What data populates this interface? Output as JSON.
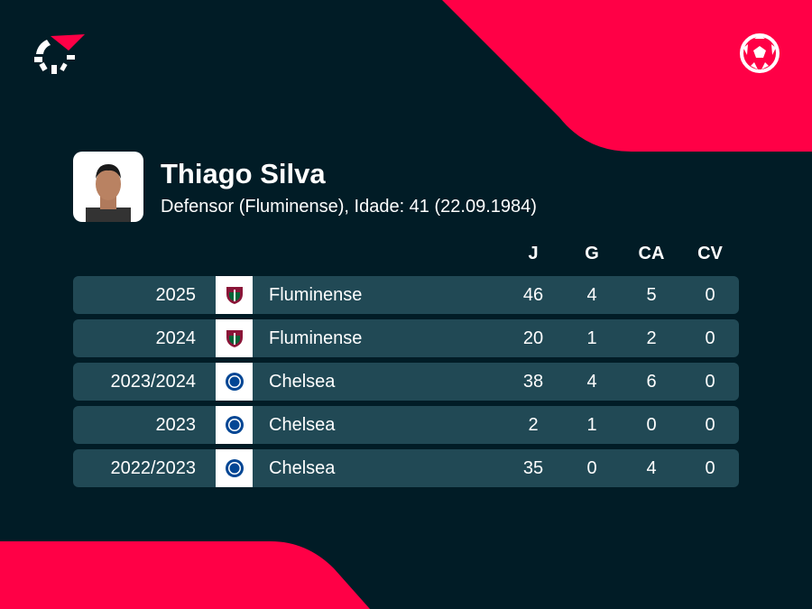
{
  "player": {
    "name": "Thiago Silva",
    "subtitle": "Defensor (Fluminense), Idade: 41 (22.09.1984)"
  },
  "columns": [
    "J",
    "G",
    "CA",
    "CV"
  ],
  "rows": [
    {
      "season": "2025",
      "team": "Fluminense",
      "crest": "fluminense-crest",
      "J": "46",
      "G": "4",
      "CA": "5",
      "CV": "0"
    },
    {
      "season": "2024",
      "team": "Fluminense",
      "crest": "fluminense-crest",
      "J": "20",
      "G": "1",
      "CA": "2",
      "CV": "0"
    },
    {
      "season": "2023/2024",
      "team": "Chelsea",
      "crest": "chelsea-crest",
      "J": "38",
      "G": "4",
      "CA": "6",
      "CV": "0"
    },
    {
      "season": "2023",
      "team": "Chelsea",
      "crest": "chelsea-crest",
      "J": "2",
      "G": "1",
      "CA": "0",
      "CV": "0"
    },
    {
      "season": "2022/2023",
      "team": "Chelsea",
      "crest": "chelsea-crest",
      "J": "35",
      "G": "0",
      "CA": "4",
      "CV": "0"
    }
  ],
  "colors": {
    "accent": "#ff0046",
    "background": "#011c26",
    "row": "#214955"
  }
}
